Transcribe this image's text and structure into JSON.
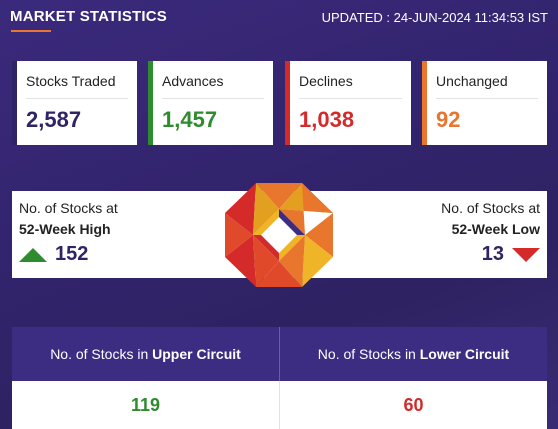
{
  "header": {
    "title": "MARKET STATISTICS",
    "updated": "UPDATED : 24-JUN-2024 11:34:53 IST"
  },
  "stats": [
    {
      "label": "Stocks Traded",
      "value": "2,587",
      "color": "#2f2566"
    },
    {
      "label": "Advances",
      "value": "1,457",
      "color": "#2e8b2e"
    },
    {
      "label": "Declines",
      "value": "1,038",
      "color": "#d42a2a"
    },
    {
      "label": "Unchanged",
      "value": "92",
      "color": "#e8762c"
    }
  ],
  "week52": {
    "high": {
      "line1": "No. of Stocks at",
      "line2": "52-Week High",
      "value": "152"
    },
    "low": {
      "line1": "No. of Stocks at",
      "line2": "52-Week Low",
      "value": "13"
    }
  },
  "circuit": {
    "upper": {
      "prefix": "No. of Stocks in ",
      "emph": "Upper Circuit",
      "value": "119",
      "color": "#2e8b2e"
    },
    "lower": {
      "prefix": "No. of Stocks in ",
      "emph": "Lower Circuit",
      "value": "60",
      "color": "#d42a2a"
    }
  }
}
